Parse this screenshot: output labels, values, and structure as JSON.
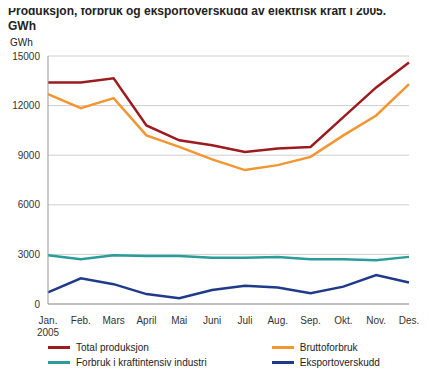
{
  "chart_data": {
    "type": "line",
    "title": "Produksjon, forbruk og eksportoverskudd av elektrisk kraft i 2005.\nGWh",
    "y_label": "GWh",
    "annotation": "2005",
    "categories": [
      "Jan.",
      "Feb.",
      "Mars",
      "April",
      "Mai",
      "Juni",
      "Juli",
      "Aug.",
      "Sep.",
      "Okt.",
      "Nov.",
      "Des."
    ],
    "series": [
      {
        "name": "Total produksjon",
        "color": "#9b1b1e",
        "values": [
          13400,
          13400,
          13650,
          10800,
          9900,
          9600,
          9200,
          9400,
          9500,
          11300,
          13100,
          14600
        ]
      },
      {
        "name": "Forbruk i kraftintensiv industri",
        "color": "#2a9d9a",
        "values": [
          2950,
          2700,
          2950,
          2900,
          2900,
          2800,
          2800,
          2850,
          2700,
          2700,
          2650,
          2850
        ]
      },
      {
        "name": "Bruttoforbruk",
        "color": "#f39530",
        "values": [
          12700,
          11850,
          12450,
          10200,
          9500,
          8750,
          8100,
          8400,
          8900,
          10200,
          11400,
          13300
        ]
      },
      {
        "name": "Eksportoverskudd",
        "color": "#1f3a8a",
        "values": [
          700,
          1550,
          1200,
          600,
          350,
          850,
          1100,
          1000,
          650,
          1050,
          1750,
          1300
        ]
      }
    ],
    "ylim": [
      0,
      15000
    ],
    "yticks": [
      0,
      3000,
      6000,
      9000,
      12000,
      15000
    ],
    "grid": true
  }
}
